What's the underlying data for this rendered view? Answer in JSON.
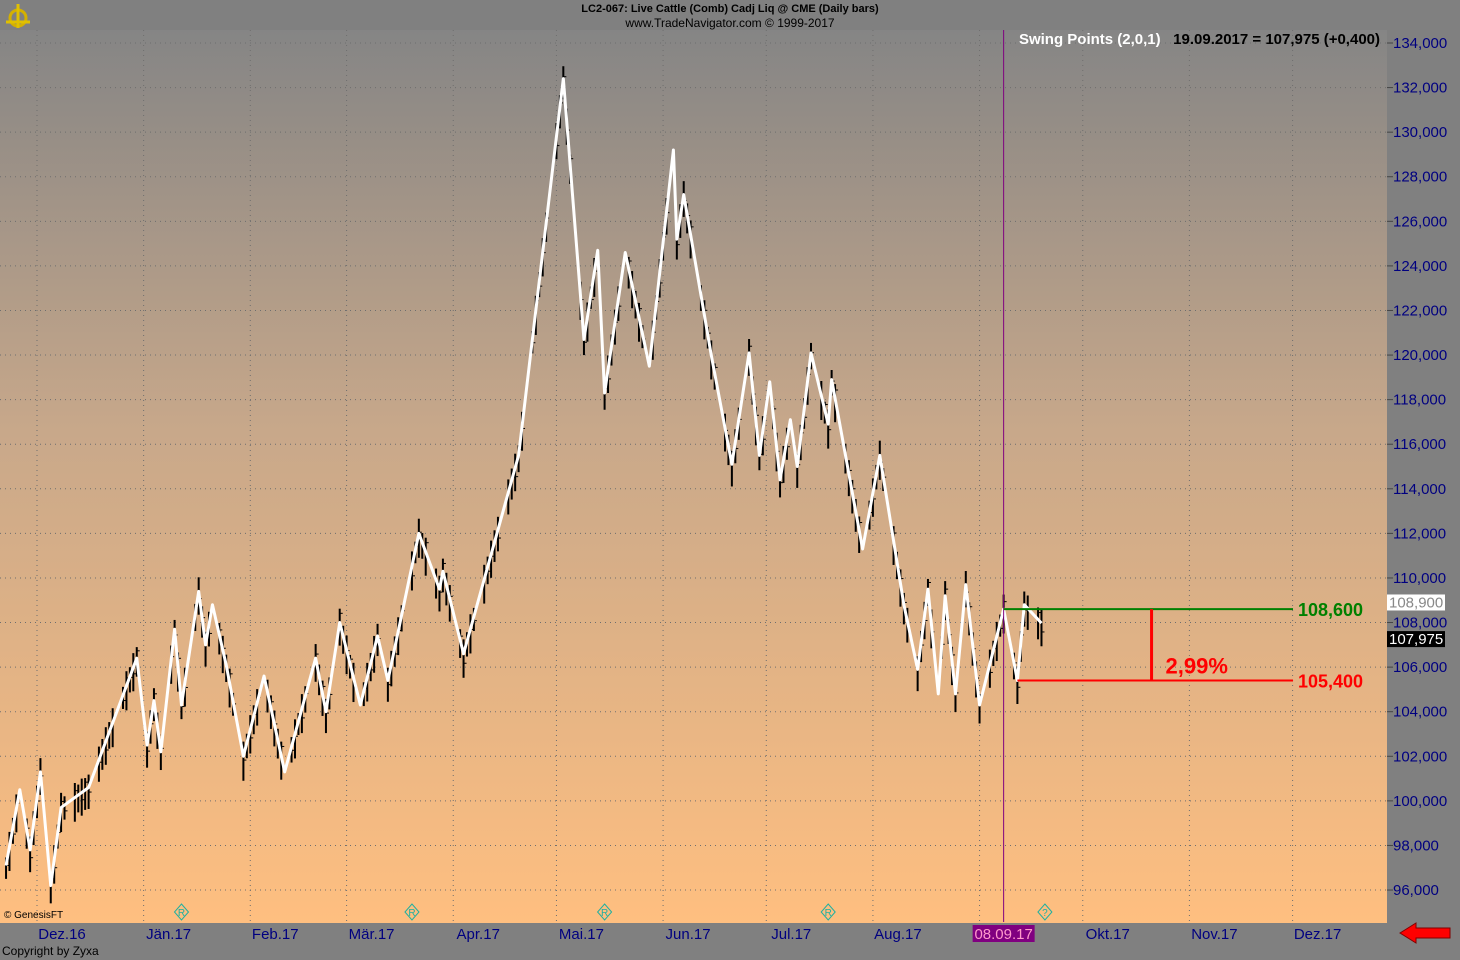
{
  "header": {
    "title": "LC2-067:  Live Cattle (Comb) Cadj Liq @ CME  (Daily bars)",
    "subtitle": "www.TradeNavigator.com © 1999-2017"
  },
  "indicator": {
    "name": "Swing Points (2,0,1)",
    "readout": "19.09.2017 = 107,975 (+0,400)"
  },
  "footer": {
    "copyright": "Copyright by Zyxa",
    "vendor": "© GenesisFT"
  },
  "colors": {
    "upper_level": "#008000",
    "lower_level": "#ff0000",
    "cursor": "#800080",
    "swing_line": "#ffffff",
    "axis_text": "#000080"
  },
  "chart_data": {
    "type": "line",
    "subtype": "ohlc-bars-with-swing-line",
    "title": "LC2-067:  Live Cattle (Comb) Cadj Liq @ CME  (Daily bars)",
    "ylim": [
      95000,
      134800
    ],
    "yticks": [
      96000,
      98000,
      100000,
      102000,
      104000,
      106000,
      108000,
      110000,
      112000,
      114000,
      116000,
      118000,
      120000,
      122000,
      124000,
      126000,
      128000,
      130000,
      132000,
      134000
    ],
    "ytick_labels": [
      "96,000",
      "98,000",
      "100,000",
      "102,000",
      "104,000",
      "106,000",
      "108,000",
      "110,000",
      "112,000",
      "114,000",
      "116,000",
      "118,000",
      "120,000",
      "122,000",
      "124,000",
      "126,000",
      "128,000",
      "130,000",
      "132,000",
      "134,000"
    ],
    "xlim": [
      "2016-11-21",
      "2017-12-28"
    ],
    "xticks": [
      "2016-12-01",
      "2017-01-01",
      "2017-02-01",
      "2017-03-01",
      "2017-04-01",
      "2017-05-01",
      "2017-06-01",
      "2017-07-01",
      "2017-08-01",
      "2017-09-01",
      "2017-10-01",
      "2017-11-01",
      "2017-12-01"
    ],
    "xtick_labels": [
      "Dez.16",
      "Jän.17",
      "Feb.17",
      "Mär.17",
      "Apr.17",
      "Mai.17",
      "Jun.17",
      "Jul.17",
      "Aug.17",
      "",
      "Okt.17",
      "Nov.17",
      "Dez.17"
    ],
    "grid": true,
    "cursor": {
      "date": "2017-09-08",
      "label": "08.09.17"
    },
    "last_bar_date": "2017-09-19",
    "price_tags": [
      {
        "value": 108900,
        "label": "108,900",
        "style": "white"
      },
      {
        "value": 107975,
        "label": "107,975",
        "style": "black"
      }
    ],
    "levels": {
      "upper": {
        "value": 108600,
        "label": "108,600",
        "from": "2017-09-08"
      },
      "lower": {
        "value": 105400,
        "label": "105,400",
        "from": "2017-09-12"
      },
      "range_pct_label": "2,99%",
      "measure_date": "2017-10-21"
    },
    "markers": [
      {
        "date": "2017-01-12",
        "symbol": "R"
      },
      {
        "date": "2017-03-20",
        "symbol": "R"
      },
      {
        "date": "2017-05-15",
        "symbol": "R"
      },
      {
        "date": "2017-07-19",
        "symbol": "R"
      },
      {
        "date": "2017-09-20",
        "symbol": "?"
      }
    ],
    "swing_points": [
      [
        "2016-11-22",
        97100
      ],
      [
        "2016-11-26",
        100500
      ],
      [
        "2016-11-29",
        97800
      ],
      [
        "2016-12-02",
        101300
      ],
      [
        "2016-12-05",
        96200
      ],
      [
        "2016-12-08",
        99700
      ],
      [
        "2016-12-16",
        100600
      ],
      [
        "2016-12-30",
        106400
      ],
      [
        "2017-01-02",
        102500
      ],
      [
        "2017-01-04",
        104500
      ],
      [
        "2017-01-06",
        102200
      ],
      [
        "2017-01-10",
        107700
      ],
      [
        "2017-01-12",
        104300
      ],
      [
        "2017-01-17",
        109400
      ],
      [
        "2017-01-19",
        107000
      ],
      [
        "2017-01-21",
        108800
      ],
      [
        "2017-01-25",
        106100
      ],
      [
        "2017-01-30",
        102000
      ],
      [
        "2017-02-05",
        105600
      ],
      [
        "2017-02-11",
        101300
      ],
      [
        "2017-02-20",
        106400
      ],
      [
        "2017-02-23",
        104000
      ],
      [
        "2017-02-27",
        108000
      ],
      [
        "2017-03-05",
        104300
      ],
      [
        "2017-03-10",
        107400
      ],
      [
        "2017-03-13",
        105400
      ],
      [
        "2017-03-22",
        112000
      ],
      [
        "2017-03-28",
        109500
      ],
      [
        "2017-03-29",
        110300
      ],
      [
        "2017-04-04",
        106600
      ],
      [
        "2017-04-20",
        115500
      ],
      [
        "2017-05-03",
        132400
      ],
      [
        "2017-05-09",
        120700
      ],
      [
        "2017-05-13",
        124700
      ],
      [
        "2017-05-15",
        118300
      ],
      [
        "2017-05-21",
        124600
      ],
      [
        "2017-05-28",
        119500
      ],
      [
        "2017-06-04",
        129200
      ],
      [
        "2017-06-05",
        125200
      ],
      [
        "2017-06-07",
        127200
      ],
      [
        "2017-06-15",
        120000
      ],
      [
        "2017-06-21",
        115100
      ],
      [
        "2017-06-26",
        120100
      ],
      [
        "2017-06-29",
        115500
      ],
      [
        "2017-07-02",
        118800
      ],
      [
        "2017-07-05",
        114400
      ],
      [
        "2017-07-08",
        117100
      ],
      [
        "2017-07-10",
        115000
      ],
      [
        "2017-07-14",
        120100
      ],
      [
        "2017-07-19",
        116900
      ],
      [
        "2017-07-20",
        118900
      ],
      [
        "2017-07-29",
        111300
      ],
      [
        "2017-08-03",
        115500
      ],
      [
        "2017-08-10",
        108800
      ],
      [
        "2017-08-14",
        105900
      ],
      [
        "2017-08-17",
        109500
      ],
      [
        "2017-08-20",
        104800
      ],
      [
        "2017-08-22",
        109200
      ],
      [
        "2017-08-25",
        104800
      ],
      [
        "2017-08-28",
        109700
      ],
      [
        "2017-09-01",
        104300
      ],
      [
        "2017-09-08",
        108600
      ],
      [
        "2017-09-12",
        105400
      ],
      [
        "2017-09-14",
        108800
      ],
      [
        "2017-09-19",
        107975
      ]
    ]
  }
}
